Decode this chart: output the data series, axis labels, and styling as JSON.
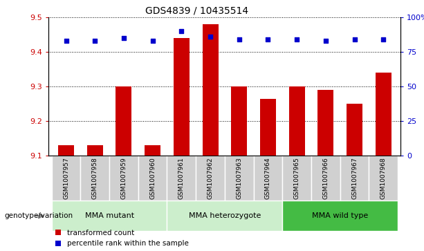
{
  "title": "GDS4839 / 10435514",
  "samples": [
    "GSM1007957",
    "GSM1007958",
    "GSM1007959",
    "GSM1007960",
    "GSM1007961",
    "GSM1007962",
    "GSM1007963",
    "GSM1007964",
    "GSM1007965",
    "GSM1007966",
    "GSM1007967",
    "GSM1007968"
  ],
  "bar_values": [
    9.13,
    9.13,
    9.3,
    9.13,
    9.44,
    9.48,
    9.3,
    9.265,
    9.3,
    9.29,
    9.25,
    9.34
  ],
  "dot_values": [
    83,
    83,
    85,
    83,
    90,
    86,
    84,
    84,
    84,
    83,
    84,
    84
  ],
  "bar_color": "#cc0000",
  "dot_color": "#0000cc",
  "ylim_left": [
    9.1,
    9.5
  ],
  "ylim_right": [
    0,
    100
  ],
  "yticks_left": [
    9.1,
    9.2,
    9.3,
    9.4,
    9.5
  ],
  "yticks_right": [
    0,
    25,
    50,
    75,
    100
  ],
  "ytick_right_labels": [
    "0",
    "25",
    "50",
    "75",
    "100%"
  ],
  "group_configs": [
    {
      "start": 0,
      "end": 3,
      "label": "MMA mutant",
      "color": "#aaddaa"
    },
    {
      "start": 4,
      "end": 7,
      "label": "MMA heterozygote",
      "color": "#aaddaa"
    },
    {
      "start": 8,
      "end": 11,
      "label": "MMA wild type",
      "color": "#55cc55"
    }
  ],
  "genotype_label": "genotype/variation",
  "legend_bar_label": "transformed count",
  "legend_dot_label": "percentile rank within the sample",
  "bar_width": 0.55,
  "base_value": 9.1,
  "left_tick_color": "#cc0000",
  "right_tick_color": "#0000cc",
  "bg_color_xlabels": "#d0d0d0",
  "group_label_color_light": "#cceecc",
  "group_label_color_dark": "#44bb44"
}
